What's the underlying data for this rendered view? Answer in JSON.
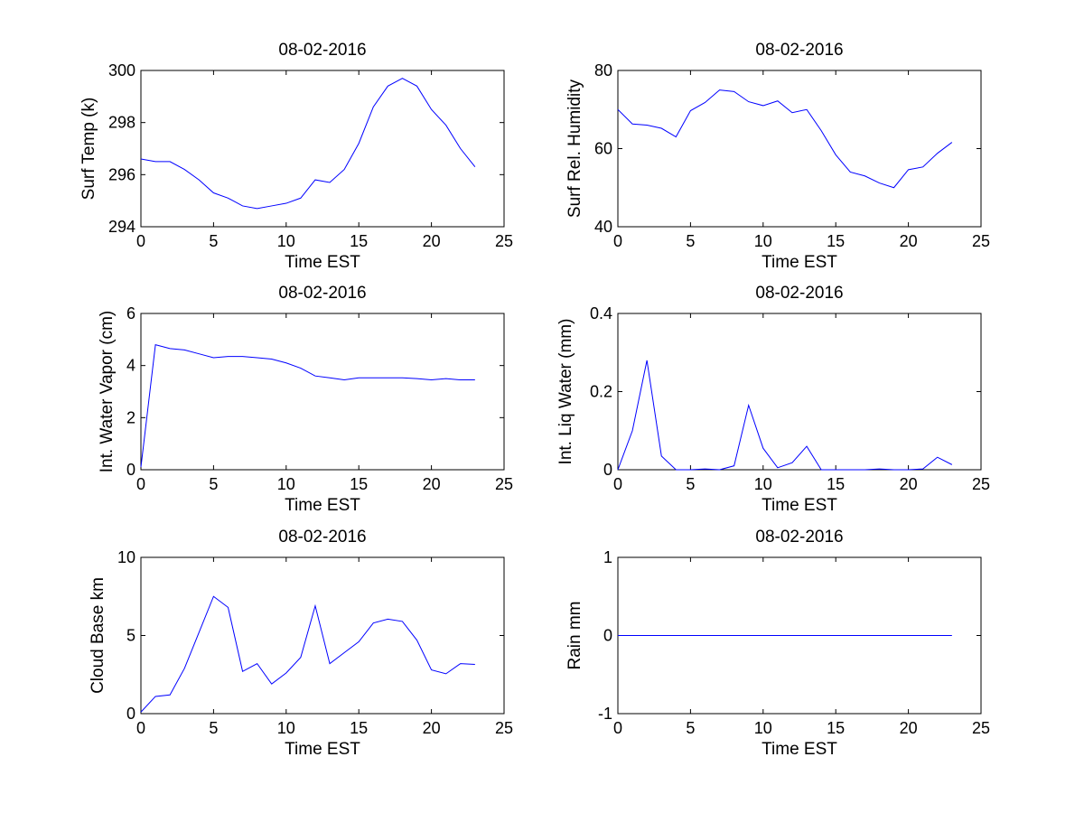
{
  "figure": {
    "background": "#ffffff",
    "line_color": "#0000ff"
  },
  "chart_data": [
    {
      "type": "line",
      "title": "08-02-2016",
      "xlabel": "Time EST",
      "ylabel": "Surf Temp (k)",
      "xlim": [
        0,
        25
      ],
      "ylim": [
        294,
        300
      ],
      "xticks": [
        0,
        5,
        10,
        15,
        20,
        25
      ],
      "yticks": [
        294,
        296,
        298,
        300
      ],
      "x": [
        0,
        1,
        2,
        3,
        4,
        5,
        6,
        7,
        8,
        9,
        10,
        11,
        12,
        13,
        14,
        15,
        16,
        17,
        18,
        19,
        20,
        21,
        22,
        23
      ],
      "values": [
        296.6,
        296.5,
        296.5,
        296.2,
        295.8,
        295.3,
        295.1,
        294.8,
        294.7,
        294.8,
        294.9,
        295.1,
        295.8,
        295.7,
        296.2,
        297.2,
        298.6,
        299.4,
        299.7,
        299.4,
        298.5,
        297.9,
        297.0,
        296.3
      ]
    },
    {
      "type": "line",
      "title": "08-02-2016",
      "xlabel": "Time EST",
      "ylabel": "Surf Rel. Humidity",
      "xlim": [
        0,
        25
      ],
      "ylim": [
        40,
        80
      ],
      "xticks": [
        0,
        5,
        10,
        15,
        20,
        25
      ],
      "yticks": [
        40,
        60,
        80
      ],
      "x": [
        0,
        1,
        2,
        3,
        4,
        5,
        6,
        7,
        8,
        9,
        10,
        11,
        12,
        13,
        14,
        15,
        16,
        17,
        18,
        19,
        20,
        21,
        22,
        23
      ],
      "values": [
        70,
        66.3,
        66,
        65.2,
        63,
        69.7,
        71.8,
        75,
        74.6,
        72,
        71,
        72.2,
        69.2,
        70,
        64.6,
        58.4,
        54,
        53,
        51.2,
        50,
        54.6,
        55.3,
        58.8,
        61.6
      ]
    },
    {
      "type": "line",
      "title": "08-02-2016",
      "xlabel": "Time EST",
      "ylabel": "Int. Water Vapor (cm)",
      "xlim": [
        0,
        25
      ],
      "ylim": [
        0,
        6
      ],
      "xticks": [
        0,
        5,
        10,
        15,
        20,
        25
      ],
      "yticks": [
        0,
        2,
        4,
        6
      ],
      "x": [
        0,
        1,
        2,
        3,
        4,
        5,
        6,
        7,
        8,
        9,
        10,
        11,
        12,
        13,
        14,
        15,
        16,
        17,
        18,
        19,
        20,
        21,
        22,
        23
      ],
      "values": [
        0.1,
        4.8,
        4.65,
        4.6,
        4.45,
        4.3,
        4.35,
        4.35,
        4.3,
        4.25,
        4.1,
        3.9,
        3.6,
        3.53,
        3.45,
        3.53,
        3.53,
        3.53,
        3.53,
        3.5,
        3.45,
        3.5,
        3.45,
        3.45
      ]
    },
    {
      "type": "line",
      "title": "08-02-2016",
      "xlabel": "Time EST",
      "ylabel": "Int. Liq Water (mm)",
      "xlim": [
        0,
        25
      ],
      "ylim": [
        0,
        0.4
      ],
      "xticks": [
        0,
        5,
        10,
        15,
        20,
        25
      ],
      "yticks": [
        0,
        0.2,
        0.4
      ],
      "x": [
        0,
        1,
        2,
        3,
        4,
        5,
        6,
        7,
        8,
        9,
        10,
        11,
        12,
        13,
        14,
        15,
        16,
        17,
        18,
        19,
        20,
        21,
        22,
        23
      ],
      "values": [
        0,
        0.1,
        0.28,
        0.035,
        0,
        0,
        0.002,
        0,
        0.01,
        0.165,
        0.055,
        0.005,
        0.018,
        0.06,
        0,
        0,
        0,
        0,
        0.002,
        0,
        0,
        0.002,
        0.032,
        0.013
      ]
    },
    {
      "type": "line",
      "title": "08-02-2016",
      "xlabel": "Time EST",
      "ylabel": "Cloud Base km",
      "xlim": [
        0,
        25
      ],
      "ylim": [
        0,
        10
      ],
      "xticks": [
        0,
        5,
        10,
        15,
        20,
        25
      ],
      "yticks": [
        0,
        5,
        10
      ],
      "x": [
        0,
        1,
        2,
        3,
        4,
        5,
        6,
        7,
        8,
        9,
        10,
        11,
        12,
        13,
        14,
        15,
        16,
        17,
        18,
        19,
        20,
        21,
        22,
        23
      ],
      "values": [
        0.1,
        1.1,
        1.2,
        2.9,
        5.2,
        7.5,
        6.8,
        2.7,
        3.2,
        1.9,
        2.6,
        3.6,
        6.9,
        3.2,
        3.9,
        4.6,
        5.8,
        6.05,
        5.9,
        4.7,
        2.8,
        2.55,
        3.2,
        3.15
      ]
    },
    {
      "type": "line",
      "title": "08-02-2016",
      "xlabel": "Time EST",
      "ylabel": "Rain mm",
      "xlim": [
        0,
        25
      ],
      "ylim": [
        -1,
        1
      ],
      "xticks": [
        0,
        5,
        10,
        15,
        20,
        25
      ],
      "yticks": [
        -1,
        0,
        1
      ],
      "x": [
        0,
        1,
        2,
        3,
        4,
        5,
        6,
        7,
        8,
        9,
        10,
        11,
        12,
        13,
        14,
        15,
        16,
        17,
        18,
        19,
        20,
        21,
        22,
        23
      ],
      "values": [
        0,
        0,
        0,
        0,
        0,
        0,
        0,
        0,
        0,
        0,
        0,
        0,
        0,
        0,
        0,
        0,
        0,
        0,
        0,
        0,
        0,
        0,
        0,
        0
      ]
    }
  ]
}
